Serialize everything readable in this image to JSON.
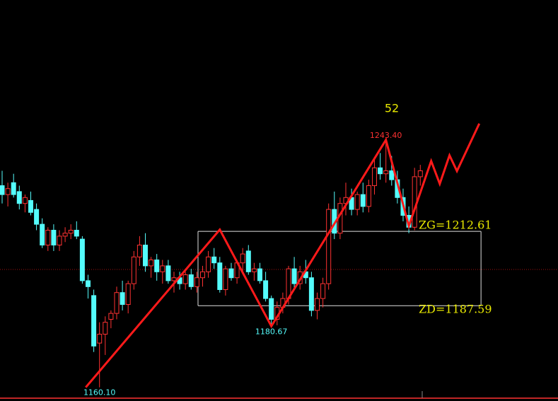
{
  "chart_data": {
    "type": "candlestick",
    "ylim": [
      1155.5,
      1290.5
    ],
    "xlim": [
      -0.37,
      97.04
    ],
    "up_color": "#ff3232",
    "down_color": "#54fcfc",
    "candles": [
      [
        1228,
        1233,
        1222,
        1225
      ],
      [
        1225,
        1229,
        1221,
        1227
      ],
      [
        1229,
        1232,
        1224,
        1225
      ],
      [
        1226,
        1228,
        1220,
        1222
      ],
      [
        1222,
        1225,
        1219,
        1224
      ],
      [
        1223,
        1226,
        1218,
        1219
      ],
      [
        1220,
        1222,
        1213,
        1215
      ],
      [
        1215,
        1217,
        1207,
        1208
      ],
      [
        1208,
        1214,
        1206,
        1213
      ],
      [
        1213,
        1215,
        1206,
        1208
      ],
      [
        1208,
        1213,
        1206,
        1211
      ],
      [
        1211,
        1214,
        1209,
        1212
      ],
      [
        1212,
        1215,
        1210,
        1213
      ],
      [
        1213,
        1216,
        1210,
        1211
      ],
      [
        1210,
        1211,
        1195,
        1196
      ],
      [
        1196,
        1198,
        1190,
        1194
      ],
      [
        1191,
        1193,
        1172,
        1174
      ],
      [
        1175,
        1182,
        1160.1,
        1178
      ],
      [
        1178,
        1184,
        1171,
        1182
      ],
      [
        1183,
        1186,
        1180,
        1185
      ],
      [
        1185,
        1194,
        1183,
        1192
      ],
      [
        1192,
        1196,
        1186,
        1188
      ],
      [
        1188,
        1196,
        1185,
        1195
      ],
      [
        1195,
        1206,
        1193,
        1204
      ],
      [
        1204,
        1211,
        1201,
        1208
      ],
      [
        1208,
        1212,
        1199,
        1201
      ],
      [
        1201,
        1204,
        1197,
        1203
      ],
      [
        1203,
        1205,
        1196,
        1199
      ],
      [
        1199,
        1203,
        1195,
        1201
      ],
      [
        1201,
        1203,
        1195,
        1196
      ],
      [
        1196,
        1199,
        1192,
        1197
      ],
      [
        1197,
        1199,
        1193,
        1195
      ],
      [
        1195,
        1199,
        1193,
        1198
      ],
      [
        1198,
        1200,
        1193,
        1194
      ],
      [
        1194,
        1199,
        1192,
        1197
      ],
      [
        1197,
        1201,
        1194,
        1199
      ],
      [
        1199,
        1206,
        1197,
        1204
      ],
      [
        1204,
        1207,
        1200,
        1202
      ],
      [
        1202,
        1204,
        1192,
        1193
      ],
      [
        1193,
        1201,
        1191,
        1200
      ],
      [
        1200,
        1202,
        1196,
        1197
      ],
      [
        1197,
        1203,
        1195,
        1202
      ],
      [
        1202,
        1207,
        1199,
        1205
      ],
      [
        1206,
        1208,
        1198,
        1199
      ],
      [
        1199,
        1202,
        1196,
        1200
      ],
      [
        1200,
        1202,
        1195,
        1196
      ],
      [
        1196,
        1199,
        1189,
        1190
      ],
      [
        1190,
        1191,
        1180.67,
        1183
      ],
      [
        1183,
        1189,
        1181,
        1187
      ],
      [
        1187,
        1192,
        1185,
        1190
      ],
      [
        1190,
        1201,
        1188,
        1200
      ],
      [
        1200,
        1204,
        1193,
        1195
      ],
      [
        1195,
        1201,
        1193,
        1199
      ],
      [
        1199,
        1203,
        1195,
        1197
      ],
      [
        1197,
        1199,
        1184,
        1186
      ],
      [
        1186,
        1192,
        1183,
        1190
      ],
      [
        1190,
        1197,
        1187,
        1195
      ],
      [
        1195,
        1222,
        1193,
        1220
      ],
      [
        1220,
        1226,
        1210,
        1212
      ],
      [
        1212,
        1224,
        1210,
        1222
      ],
      [
        1222,
        1229,
        1218,
        1224
      ],
      [
        1224,
        1227,
        1218,
        1220
      ],
      [
        1220,
        1226,
        1218,
        1225
      ],
      [
        1225,
        1229,
        1219,
        1221
      ],
      [
        1221,
        1230,
        1219,
        1228
      ],
      [
        1228,
        1237,
        1225,
        1234
      ],
      [
        1234,
        1239,
        1230,
        1232
      ],
      [
        1232,
        1243.4,
        1229,
        1233
      ],
      [
        1233,
        1238,
        1228,
        1230
      ],
      [
        1230,
        1233,
        1222,
        1224
      ],
      [
        1224,
        1227,
        1216,
        1218
      ],
      [
        1218,
        1221,
        1212,
        1214
      ],
      [
        1214,
        1234,
        1213,
        1231
      ],
      [
        1231,
        1235,
        1228,
        1233
      ]
    ],
    "zigzag": {
      "color": "#ff1a1a",
      "x": [
        14.6,
        38,
        47,
        67,
        71,
        74.9,
        76.4,
        78.1,
        79.4,
        83.3
      ],
      "values": [
        1160.1,
        1213.2,
        1180.67,
        1243.4,
        1214.4,
        1236.3,
        1228.6,
        1238.2,
        1232.9,
        1248.9
      ]
    },
    "pivot": {
      "x_start": 34.2,
      "x_end": 83.6,
      "zg": 1212.61,
      "zd": 1187.59,
      "zg_label": "ZG=1212.61",
      "zd_label": "ZD=1187.59"
    },
    "reference_line": 1199.8,
    "extreme_labels": [
      {
        "index": 17,
        "text": "1160.10",
        "color": "#54fcfc",
        "side": "below"
      },
      {
        "index": 47,
        "text": "1180.67",
        "color": "#54fcfc",
        "side": "below"
      },
      {
        "index": 67,
        "text": "1243.40",
        "color": "#ff3232",
        "side": "above"
      }
    ],
    "annotation": "52"
  }
}
